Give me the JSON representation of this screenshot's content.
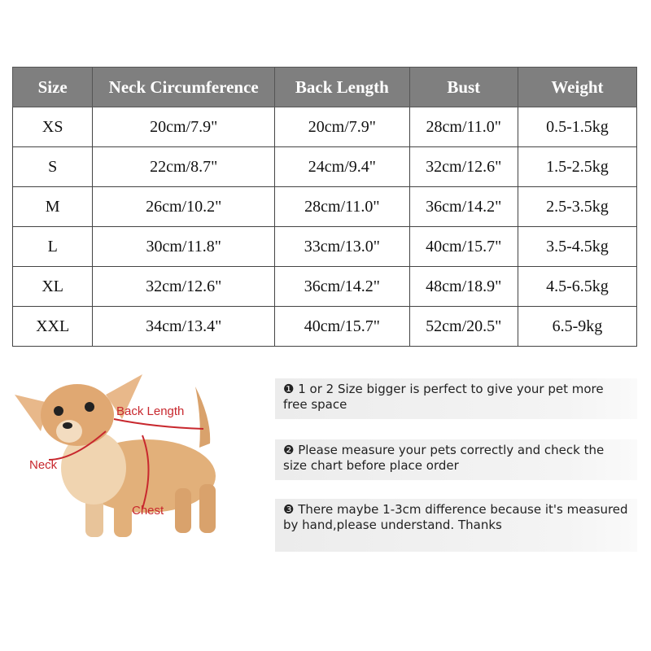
{
  "table": {
    "headers": [
      "Size",
      "Neck Circumference",
      "Back Length",
      "Bust",
      "Weight"
    ],
    "rows": [
      [
        "XS",
        "20cm/7.9\"",
        "20cm/7.9\"",
        "28cm/11.0\"",
        "0.5-1.5kg"
      ],
      [
        "S",
        "22cm/8.7\"",
        "24cm/9.4\"",
        "32cm/12.6\"",
        "1.5-2.5kg"
      ],
      [
        "M",
        "26cm/10.2\"",
        "28cm/11.0\"",
        "36cm/14.2\"",
        "2.5-3.5kg"
      ],
      [
        "L",
        "30cm/11.8\"",
        "33cm/13.0\"",
        "40cm/15.7\"",
        "3.5-4.5kg"
      ],
      [
        "XL",
        "32cm/12.6\"",
        "36cm/14.2\"",
        "48cm/18.9\"",
        "4.5-6.5kg"
      ],
      [
        "XXL",
        "34cm/13.4\"",
        "40cm/15.7\"",
        "52cm/20.5\"",
        "6.5-9kg"
      ]
    ]
  },
  "diagram": {
    "labels": {
      "back": "Back Length",
      "neck": "Neck",
      "chest": "Chest"
    },
    "color": "#c8282e"
  },
  "notes": [
    "❶ 1 or 2 Size bigger is perfect to give your pet more free space",
    "❷ Please measure your pets correctly and check the size chart before place order",
    "❸ There maybe 1-3cm difference because it's measured by hand,please understand. Thanks"
  ]
}
